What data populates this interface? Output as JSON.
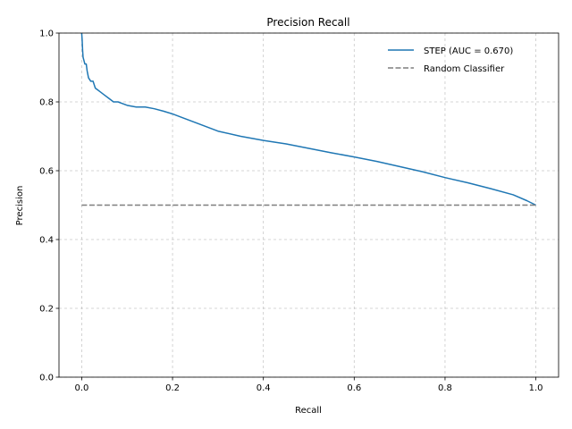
{
  "chart_data": {
    "type": "line",
    "title": "Precision Recall",
    "xlabel": "Recall",
    "ylabel": "Precision",
    "xlim": [
      -0.05,
      1.05
    ],
    "ylim": [
      0.0,
      1.0
    ],
    "xticks": [
      0.0,
      0.2,
      0.4,
      0.6,
      0.8,
      1.0
    ],
    "xtick_labels": [
      "0.0",
      "0.2",
      "0.4",
      "0.6",
      "0.8",
      "1.0"
    ],
    "yticks": [
      0.0,
      0.2,
      0.4,
      0.6,
      0.8,
      1.0
    ],
    "ytick_labels": [
      "0.0",
      "0.2",
      "0.4",
      "0.6",
      "0.8",
      "1.0"
    ],
    "grid": true,
    "legend_position": "top-right",
    "series": [
      {
        "name": "STEP (AUC = 0.670)",
        "color": "#1f77b4",
        "style": "solid",
        "x": [
          0.0,
          0.001,
          0.002,
          0.003,
          0.005,
          0.007,
          0.01,
          0.012,
          0.015,
          0.02,
          0.025,
          0.03,
          0.035,
          0.04,
          0.05,
          0.06,
          0.07,
          0.08,
          0.09,
          0.1,
          0.12,
          0.14,
          0.16,
          0.18,
          0.2,
          0.22,
          0.25,
          0.3,
          0.35,
          0.4,
          0.45,
          0.5,
          0.55,
          0.6,
          0.65,
          0.7,
          0.75,
          0.8,
          0.85,
          0.9,
          0.95,
          0.98,
          1.0
        ],
        "y": [
          1.0,
          0.98,
          0.95,
          0.93,
          0.92,
          0.91,
          0.91,
          0.89,
          0.87,
          0.86,
          0.86,
          0.84,
          0.835,
          0.83,
          0.82,
          0.81,
          0.8,
          0.8,
          0.795,
          0.79,
          0.785,
          0.785,
          0.78,
          0.773,
          0.765,
          0.755,
          0.74,
          0.715,
          0.7,
          0.688,
          0.678,
          0.665,
          0.652,
          0.64,
          0.627,
          0.612,
          0.597,
          0.58,
          0.565,
          0.548,
          0.53,
          0.513,
          0.5
        ]
      },
      {
        "name": "Random Classifier",
        "color": "#7f7f7f",
        "style": "dashed",
        "x": [
          0.0,
          1.0
        ],
        "y": [
          0.5,
          0.5
        ]
      }
    ]
  }
}
